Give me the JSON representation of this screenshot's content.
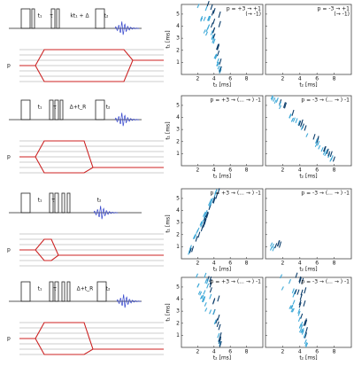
{
  "axes": {
    "y_label": "t₁ [ms]",
    "x_label": "t₂ [ms]",
    "yticks": [
      1,
      2,
      3,
      4,
      5
    ],
    "xticks": [
      2,
      4,
      6,
      8
    ]
  },
  "p_label": "p",
  "rows": [
    {
      "sequence": {
        "labels": [
          "t₁",
          "τ",
          "kt₁ + Δ",
          "t₂"
        ]
      },
      "panels": [
        {
          "pathway": "p = +3 → +1",
          "note": "(→ -1)"
        },
        {
          "pathway": "p = -3 → +1",
          "note": "(→ -1)"
        }
      ]
    },
    {
      "sequence": {
        "labels": [
          "t₁",
          "τ",
          "Δ+t_R",
          "t₂"
        ]
      },
      "panels": [
        {
          "pathway": "p = +3 → (... → ) -1",
          "note": ""
        },
        {
          "pathway": "p = -3 → (... → ) -1",
          "note": ""
        }
      ]
    },
    {
      "sequence": {
        "labels": [
          "t₁",
          "τ",
          "t₂"
        ]
      },
      "panels": [
        {
          "pathway": "p = +3 → (... → ) -1",
          "note": ""
        },
        {
          "pathway": "p = -3 → (... → ) -1",
          "note": ""
        }
      ]
    },
    {
      "sequence": {
        "labels": [
          "t₁",
          "τ",
          "Δ+t_R",
          "t₂"
        ]
      },
      "panels": [
        {
          "pathway": "p = +3 → (... → ) -1",
          "note": ""
        },
        {
          "pathway": "p = -3 → (... → ) -1",
          "note": ""
        }
      ]
    }
  ]
}
